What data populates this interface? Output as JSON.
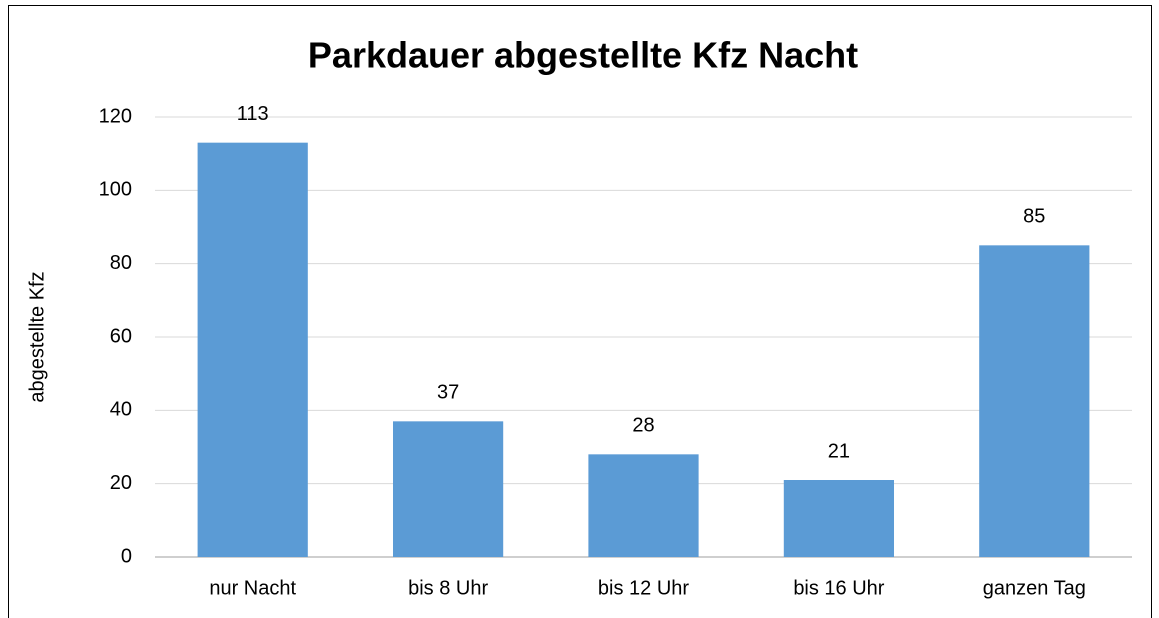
{
  "chart_data": {
    "type": "bar",
    "title": "Parkdauer abgestellte Kfz Nacht",
    "y_label": "abgestellte Kfz",
    "categories": [
      "nur Nacht",
      "bis 8 Uhr",
      "bis 12 Uhr",
      "bis 16 Uhr",
      "ganzen Tag"
    ],
    "values": [
      113,
      37,
      28,
      21,
      85
    ],
    "color": "#5b9bd5",
    "ylim": [
      0,
      120
    ],
    "yticks": [
      0,
      20,
      40,
      60,
      80,
      100,
      120
    ],
    "grid": true
  }
}
